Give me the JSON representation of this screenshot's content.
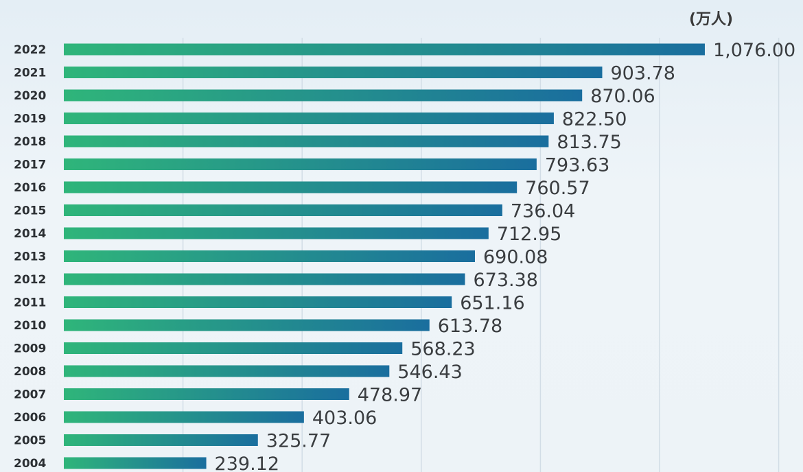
{
  "chart_data": {
    "type": "bar",
    "orientation": "horizontal",
    "unit": "(万人)",
    "categories": [
      "2022",
      "2021",
      "2020",
      "2019",
      "2018",
      "2017",
      "2016",
      "2015",
      "2014",
      "2013",
      "2012",
      "2011",
      "2010",
      "2009",
      "2008",
      "2007",
      "2006",
      "2005",
      "2004"
    ],
    "values": [
      1076.0,
      903.78,
      870.06,
      822.5,
      813.75,
      793.63,
      760.57,
      736.04,
      712.95,
      690.08,
      673.38,
      651.16,
      613.78,
      568.23,
      546.43,
      478.97,
      403.06,
      325.77,
      239.12
    ],
    "value_labels": [
      "1,076.00",
      "903.78",
      "870.06",
      "822.50",
      "813.75",
      "793.63",
      "760.57",
      "736.04",
      "712.95",
      "690.08",
      "673.38",
      "651.16",
      "613.78",
      "568.23",
      "546.43",
      "478.97",
      "403.06",
      "325.77",
      "239.12"
    ],
    "title": "",
    "xlabel": "",
    "ylabel": "",
    "xlim": [
      0,
      1200
    ],
    "grid": true,
    "bar_gradient": [
      "#2fb57a",
      "#1a6e9e"
    ]
  }
}
